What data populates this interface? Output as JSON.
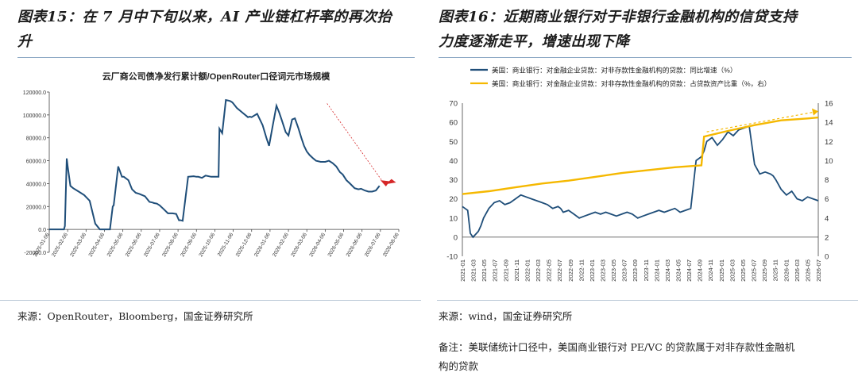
{
  "left": {
    "title": "图表15：在7月中下旬以来，AI产业链杠杆率的再次抬升",
    "title_line1": "图表15：在 7 月中下旬以来，AI 产业链杠杆率的再次抬",
    "title_line2": "升",
    "source": "来源：OpenRouter，Bloomberg，国金证券研究所",
    "chart_data": {
      "type": "line",
      "title": "云厂商公司债净发行累计额/OpenRouter口径词元市场规模",
      "ylim": [
        -20000,
        120000
      ],
      "yticks": [
        "120000.0",
        "100000.0",
        "80000.0",
        "60000.0",
        "40000.0",
        "20000.0",
        "0.0",
        "-20000.0"
      ],
      "xticks": [
        "2025-01-06",
        "2025-02-06",
        "2025-03-06",
        "2025-04-06",
        "2025-05-06",
        "2025-06-06",
        "2025-07-06",
        "2025-08-06",
        "2025-09-06",
        "2025-10-06",
        "2025-11-06",
        "2025-12-06",
        "2026-01-06",
        "2026-02-06",
        "2026-03-06",
        "2026-04-06",
        "2026-05-06",
        "2026-06-06",
        "2026-07-06",
        "2026-08-06"
      ],
      "series": [
        {
          "color": "#1f4e79",
          "x": [
            0,
            0.8,
            0.85,
            0.95,
            1.0,
            1.15,
            1.3,
            1.6,
            1.9,
            2.2,
            2.5,
            2.75,
            2.85,
            3.0,
            3.3,
            3.45,
            3.5,
            3.75,
            3.95,
            4.05,
            4.3,
            4.5,
            4.7,
            4.9,
            5.2,
            5.45,
            5.6,
            5.7,
            5.85,
            6.0,
            6.2,
            6.45,
            6.7,
            6.9,
            7.05,
            7.15,
            7.25,
            7.55,
            7.85,
            8.0,
            8.1,
            8.3,
            8.5,
            8.8,
            9.2,
            9.25,
            9.4,
            9.6,
            9.75,
            9.85,
            9.95,
            10.0,
            10.2,
            10.5,
            10.8,
            10.9,
            11.0,
            11.3,
            11.6,
            11.8,
            11.95,
            12.15,
            12.35,
            12.5,
            12.65,
            12.85,
            13.0,
            13.2,
            13.35,
            13.55,
            13.7,
            13.85,
            14.0,
            14.15,
            14.35,
            14.5,
            14.75,
            15.0,
            15.2,
            15.4,
            15.6,
            15.8,
            15.95,
            16.15,
            16.35,
            16.6,
            16.8,
            16.95,
            17.15,
            17.35,
            17.55,
            17.75,
            17.95,
            18.15,
            18.35,
            18.5,
            18.6,
            18.7
          ],
          "values": [
            0,
            0,
            3000,
            62000,
            55000,
            38000,
            36000,
            33000,
            30000,
            25000,
            5000,
            0,
            0,
            0,
            0,
            20000,
            21000,
            55000,
            46000,
            46000,
            43000,
            35000,
            32000,
            31000,
            29000,
            24000,
            23500,
            23000,
            22500,
            21000,
            18000,
            14000,
            14000,
            13500,
            8000,
            8000,
            7500,
            46000,
            46500,
            46000,
            46000,
            45000,
            47000,
            46000,
            46000,
            88000,
            84000,
            113000,
            112500,
            112000,
            111000,
            110000,
            106000,
            102000,
            98000,
            98500,
            98000,
            101000,
            91000,
            80000,
            73000,
            91000,
            108000,
            102000,
            95000,
            85000,
            82000,
            96000,
            97000,
            88000,
            80000,
            73000,
            68000,
            65000,
            62000,
            60000,
            59000,
            59000,
            60000,
            58000,
            55000,
            50000,
            48000,
            43000,
            40000,
            36000,
            35000,
            35500,
            34000,
            33000,
            33000,
            34000,
            38000,
            null,
            null,
            null,
            null,
            null
          ]
        }
      ],
      "annotation": "dashed-red-arrow"
    }
  },
  "right": {
    "title_line1": "图表16：近期商业银行对于非银行金融机构的信贷支持",
    "title_line2": "力度逐渐走平，增速出现下降",
    "source": "来源：wind，国金证券研究所",
    "note_line1": "备注：美联储统计口径中，美国商业银行对 PE/VC 的贷款属于对非存款性金融机",
    "note_line2": "构的贷款",
    "chart_data": {
      "type": "line",
      "ylim": [
        -10,
        70
      ],
      "y2lim": [
        0,
        16
      ],
      "yticks": [
        "70",
        "60",
        "50",
        "40",
        "30",
        "20",
        "10",
        "0",
        "-10"
      ],
      "y2ticks": [
        "16",
        "14",
        "12",
        "10",
        "8",
        "6",
        "4",
        "2",
        "0"
      ],
      "xticks": [
        "2021-01",
        "2021-03",
        "2021-05",
        "2021-07",
        "2021-09",
        "2021-11",
        "2022-01",
        "2022-03",
        "2022-05",
        "2022-07",
        "2022-09",
        "2022-11",
        "2023-01",
        "2023-03",
        "2023-05",
        "2023-07",
        "2023-09",
        "2023-11",
        "2024-01",
        "2024-03",
        "2024-05",
        "2024-07",
        "2024-09",
        "2024-11",
        "2025-01",
        "2025-03",
        "2025-05",
        "2025-07",
        "2025-09",
        "2025-11",
        "2026-01",
        "2026-03",
        "2026-05",
        "2026-07"
      ],
      "legend": [
        {
          "label": "美国：商业银行：对金融企业贷款：对非存款性金融机构的贷款：同比增速（%）",
          "color": "#1f4e79"
        },
        {
          "label": "美国：商业银行：对金融企业贷款：对非存款性金融机构的贷款：占贷款资产比重（%，右）",
          "color": "#f5b800"
        }
      ],
      "series": [
        {
          "name": "同比增速（%）",
          "axis": "left",
          "color": "#1f4e79",
          "x": [
            0,
            1,
            1.5,
            2,
            3,
            3.5,
            4,
            5,
            6,
            7,
            8,
            9,
            10,
            11,
            12,
            13,
            14,
            15,
            16,
            17,
            18,
            18.5,
            19,
            20,
            21,
            22,
            23,
            24,
            25,
            26,
            27,
            28,
            29,
            30,
            31,
            32,
            33,
            34,
            35,
            36,
            37,
            38,
            39,
            40,
            41,
            42,
            43,
            44,
            45,
            45.5,
            46,
            47,
            48,
            49,
            50,
            51,
            52,
            53,
            54,
            55,
            56,
            57,
            58,
            58.5,
            59,
            60,
            61,
            62,
            63,
            64,
            65,
            66,
            67
          ],
          "values": [
            16,
            14,
            2,
            0,
            3,
            6,
            10,
            15,
            18,
            19,
            17,
            18,
            20,
            22,
            21,
            20,
            19,
            18,
            17,
            15,
            16,
            15,
            13,
            14,
            12,
            10,
            11,
            12,
            13,
            12,
            13,
            12,
            11,
            12,
            13,
            12,
            10,
            11,
            12,
            13,
            14,
            13,
            14,
            15,
            13,
            14,
            15,
            40,
            42,
            45,
            50,
            52,
            48,
            51,
            55,
            53,
            56,
            57,
            58,
            38,
            33,
            34,
            33,
            32,
            30,
            25,
            22,
            24,
            20,
            19,
            21,
            20,
            19
          ]
        },
        {
          "name": "占贷款资产比重（%，右）",
          "axis": "right",
          "color": "#f5b800",
          "x": [
            0,
            5,
            10,
            15,
            20,
            25,
            30,
            35,
            40,
            45,
            45.5,
            50,
            55,
            60,
            65,
            67
          ],
          "values": [
            6.5,
            6.8,
            7.2,
            7.6,
            7.9,
            8.3,
            8.7,
            9.0,
            9.3,
            9.5,
            12.5,
            13.1,
            13.7,
            14.2,
            14.4,
            14.5
          ]
        }
      ],
      "annotation": "dashed-trend-arrow"
    }
  }
}
